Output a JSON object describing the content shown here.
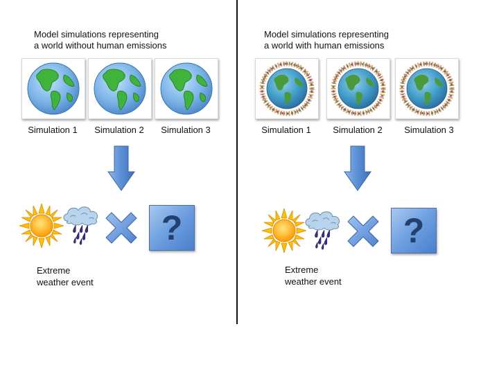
{
  "left_panel": {
    "title_line1": "Model simulations representing",
    "title_line2": "a world without human emissions",
    "simulations": [
      "Simulation 1",
      "Simulation 2",
      "Simulation 3"
    ],
    "event_line1": "Extreme",
    "event_line2": "weather event",
    "question_mark": "?"
  },
  "right_panel": {
    "title_line1": "Model simulations representing",
    "title_line2": "a world with human emissions",
    "simulations": [
      "Simulation 1",
      "Simulation 2",
      "Simulation 3"
    ],
    "event_line1": "Extreme",
    "event_line2": "weather event",
    "question_mark": "?"
  },
  "icons": {
    "globe": "earth-globe-icon",
    "globe_people": "earth-globe-with-people-icon",
    "sun": "sun-icon",
    "rain_cloud": "rain-cloud-icon",
    "cross": "cross-icon",
    "arrow": "arrow-down-icon"
  },
  "colors": {
    "ocean": "#7ab3e8",
    "land": "#3fb33a",
    "arrow_blue": "#5b8fd6",
    "sun": "#ffb400",
    "divider": "#111111"
  }
}
